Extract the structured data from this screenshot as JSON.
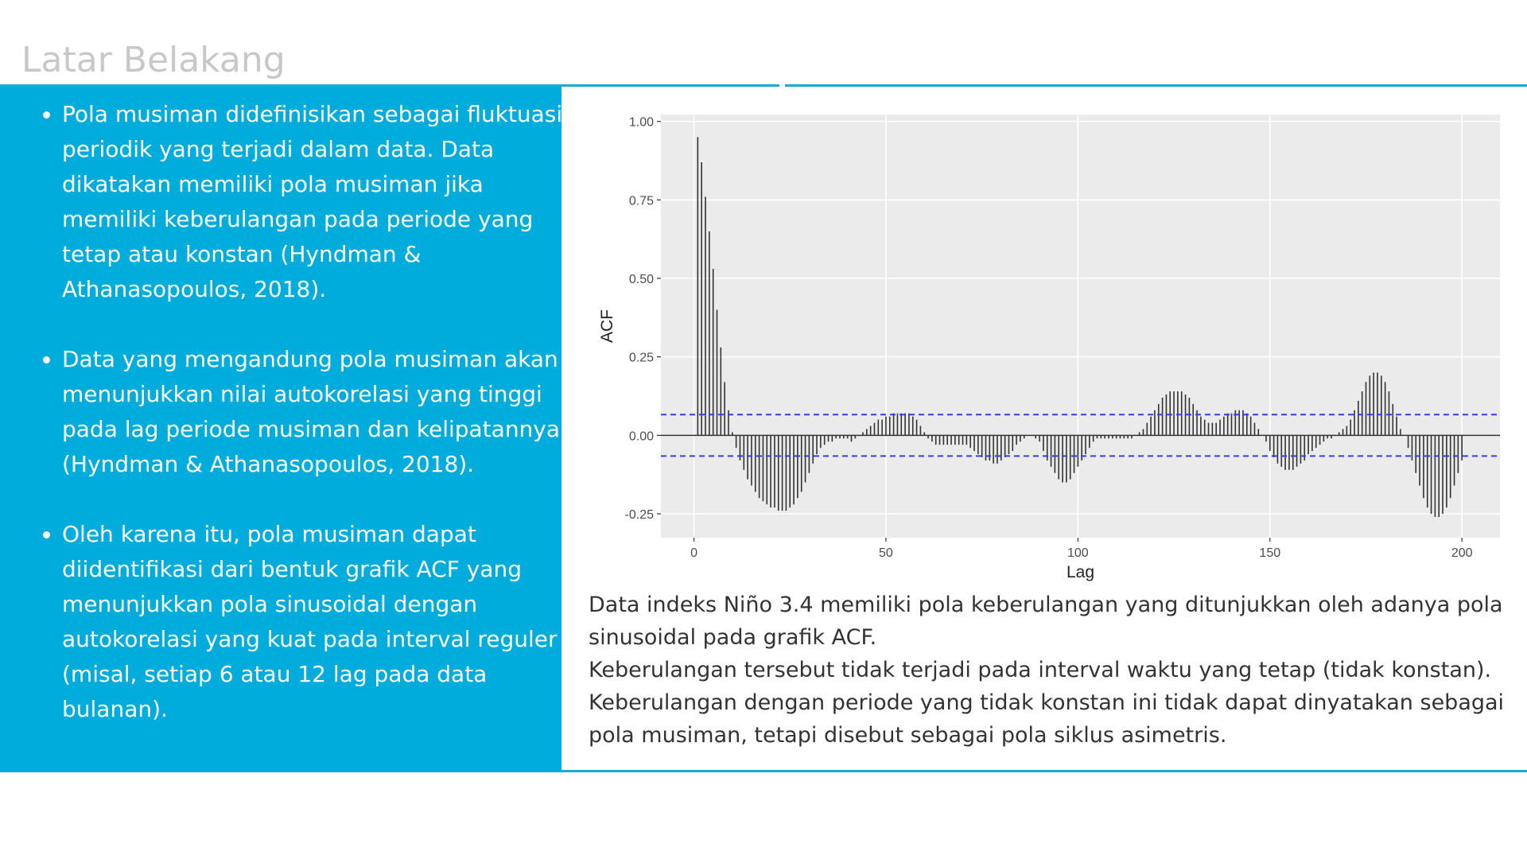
{
  "header": {
    "title": "Latar Belakang"
  },
  "bullets": [
    "Pola musiman didefinisikan sebagai fluktuasi periodik yang terjadi dalam data. Data dikatakan memiliki pola musiman jika memiliki keberulangan pada periode yang tetap atau konstan (Hyndman & Athanasopoulos, 2018).",
    "Data yang mengandung pola musiman akan menunjukkan nilai autokorelasi yang tinggi pada lag periode musiman dan kelipatannya (Hyndman & Athanasopoulos, 2018).",
    "Oleh karena itu, pola musiman dapat diidentifikasi dari bentuk grafik ACF yang menunjukkan pola sinusoidal dengan autokorelasi yang kuat pada interval reguler (misal, setiap 6 atau 12 lag pada data bulanan)."
  ],
  "caption": [
    "Data indeks Niño 3.4 memiliki pola keberulangan yang ditunjukkan oleh adanya pola sinusoidal pada grafik ACF.",
    "Keberulangan tersebut tidak terjadi pada interval waktu yang tetap (tidak konstan).",
    "Keberulangan dengan periode yang tidak konstan ini tidak dapat dinyatakan sebagai pola musiman, tetapi disebut sebagai pola siklus asimetris."
  ],
  "chart_data": {
    "type": "bar",
    "xlabel": "Lag",
    "ylabel": "ACF",
    "color": "#333333",
    "bound_color": "#3b3bf0",
    "grid": true,
    "confidence_bounds": [
      0.066,
      -0.066
    ],
    "xlim": [
      -8.6,
      209.9
    ],
    "ylim": [
      -0.326,
      1.022
    ],
    "xticks": [
      0,
      50,
      100,
      150,
      200
    ],
    "yticks": [
      {
        "value": -0.25,
        "label": "-0.25"
      },
      {
        "value": 0,
        "label": "0.00"
      },
      {
        "value": 0.25,
        "label": "0.25"
      },
      {
        "value": 0.5,
        "label": "0.50"
      },
      {
        "value": 0.75,
        "label": "0.75"
      },
      {
        "value": 1,
        "label": "1.00"
      }
    ],
    "x": [
      1,
      2,
      3,
      4,
      5,
      6,
      7,
      8,
      9,
      10,
      11,
      12,
      13,
      14,
      15,
      16,
      17,
      18,
      19,
      20,
      21,
      22,
      23,
      24,
      25,
      26,
      27,
      28,
      29,
      30,
      31,
      32,
      33,
      34,
      35,
      36,
      37,
      38,
      39,
      40,
      41,
      42,
      43,
      44,
      45,
      46,
      47,
      48,
      49,
      50,
      51,
      52,
      53,
      54,
      55,
      56,
      57,
      58,
      59,
      60,
      61,
      62,
      63,
      64,
      65,
      66,
      67,
      68,
      69,
      70,
      71,
      72,
      73,
      74,
      75,
      76,
      77,
      78,
      79,
      80,
      81,
      82,
      83,
      84,
      85,
      86,
      87,
      88,
      89,
      90,
      91,
      92,
      93,
      94,
      95,
      96,
      97,
      98,
      99,
      100,
      101,
      102,
      103,
      104,
      105,
      106,
      107,
      108,
      109,
      110,
      111,
      112,
      113,
      114,
      115,
      116,
      117,
      118,
      119,
      120,
      121,
      122,
      123,
      124,
      125,
      126,
      127,
      128,
      129,
      130,
      131,
      132,
      133,
      134,
      135,
      136,
      137,
      138,
      139,
      140,
      141,
      142,
      143,
      144,
      145,
      146,
      147,
      148,
      149,
      150,
      151,
      152,
      153,
      154,
      155,
      156,
      157,
      158,
      159,
      160,
      161,
      162,
      163,
      164,
      165,
      166,
      167,
      168,
      169,
      170,
      171,
      172,
      173,
      174,
      175,
      176,
      177,
      178,
      179,
      180,
      181,
      182,
      183,
      184,
      185,
      186,
      187,
      188,
      189,
      190,
      191,
      192,
      193,
      194,
      195,
      196,
      197,
      198,
      199,
      200
    ],
    "values": [
      0.95,
      0.87,
      0.76,
      0.65,
      0.53,
      0.4,
      0.28,
      0.17,
      0.08,
      0.01,
      -0.04,
      -0.08,
      -0.11,
      -0.14,
      -0.16,
      -0.18,
      -0.2,
      -0.21,
      -0.22,
      -0.23,
      -0.23,
      -0.24,
      -0.24,
      -0.24,
      -0.23,
      -0.22,
      -0.2,
      -0.18,
      -0.15,
      -0.12,
      -0.09,
      -0.06,
      -0.04,
      -0.03,
      -0.02,
      -0.02,
      -0.01,
      -0.01,
      -0.01,
      -0.01,
      -0.02,
      -0.01,
      0.0,
      0.01,
      0.02,
      0.03,
      0.04,
      0.05,
      0.05,
      0.06,
      0.06,
      0.07,
      0.07,
      0.07,
      0.07,
      0.07,
      0.06,
      0.05,
      0.03,
      0.01,
      -0.01,
      -0.02,
      -0.03,
      -0.03,
      -0.03,
      -0.03,
      -0.03,
      -0.03,
      -0.03,
      -0.03,
      -0.03,
      -0.04,
      -0.05,
      -0.06,
      -0.07,
      -0.08,
      -0.08,
      -0.09,
      -0.09,
      -0.08,
      -0.07,
      -0.06,
      -0.05,
      -0.03,
      -0.02,
      -0.01,
      0.0,
      0.0,
      -0.01,
      -0.02,
      -0.05,
      -0.08,
      -0.1,
      -0.12,
      -0.14,
      -0.15,
      -0.15,
      -0.14,
      -0.12,
      -0.1,
      -0.08,
      -0.06,
      -0.04,
      -0.02,
      -0.01,
      -0.01,
      -0.01,
      -0.01,
      -0.01,
      -0.01,
      -0.01,
      -0.01,
      -0.01,
      -0.01,
      0.0,
      0.01,
      0.02,
      0.04,
      0.06,
      0.08,
      0.1,
      0.12,
      0.13,
      0.14,
      0.14,
      0.14,
      0.14,
      0.13,
      0.12,
      0.1,
      0.08,
      0.06,
      0.05,
      0.04,
      0.04,
      0.04,
      0.05,
      0.06,
      0.07,
      0.07,
      0.08,
      0.08,
      0.08,
      0.07,
      0.06,
      0.04,
      0.02,
      0.0,
      -0.02,
      -0.05,
      -0.07,
      -0.09,
      -0.1,
      -0.11,
      -0.11,
      -0.11,
      -0.1,
      -0.09,
      -0.08,
      -0.06,
      -0.05,
      -0.04,
      -0.03,
      -0.02,
      -0.01,
      -0.01,
      0.0,
      0.01,
      0.02,
      0.03,
      0.05,
      0.08,
      0.11,
      0.14,
      0.17,
      0.19,
      0.2,
      0.2,
      0.19,
      0.17,
      0.14,
      0.1,
      0.06,
      0.02,
      0.0,
      -0.04,
      -0.08,
      -0.12,
      -0.16,
      -0.2,
      -0.23,
      -0.25,
      -0.26,
      -0.26,
      -0.25,
      -0.23,
      -0.2,
      -0.16,
      -0.12,
      -0.08
    ]
  }
}
